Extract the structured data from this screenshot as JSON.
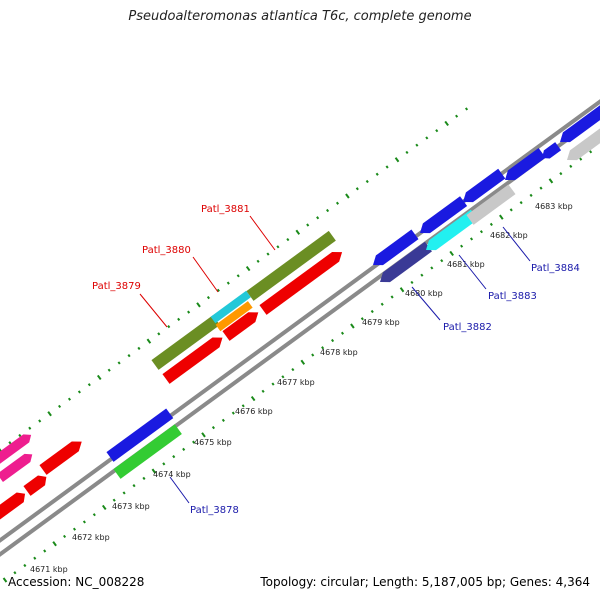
{
  "title": "Pseudoalteromonas atlantica T6c, complete genome",
  "footer": {
    "accession": "Accession: NC_008228",
    "summary": "Topology: circular; Length: 5,187,005 bp; Genes: 4,364"
  },
  "colors": {
    "backbone": "#808080",
    "ticks": "#1a8a1a",
    "highlight_label": "#dd0000",
    "normal_label": "#1a1aaa"
  },
  "ticks": [
    {
      "label": "4671 kbp"
    },
    {
      "label": "4672 kbp"
    },
    {
      "label": "4673 kbp"
    },
    {
      "label": "4674 kbp"
    },
    {
      "label": "4675 kbp"
    },
    {
      "label": "4676 kbp"
    },
    {
      "label": "4677 kbp"
    },
    {
      "label": "4678 kbp"
    },
    {
      "label": "4679 kbp"
    },
    {
      "label": "4680 kbp"
    },
    {
      "label": "4681 kbp"
    },
    {
      "label": "4682 kbp"
    },
    {
      "label": "4683 kbp"
    }
  ],
  "gene_labels": [
    {
      "text": "Patl_3878",
      "highlight": false
    },
    {
      "text": "Patl_3879",
      "highlight": true
    },
    {
      "text": "Patl_3880",
      "highlight": true
    },
    {
      "text": "Patl_3881",
      "highlight": true
    },
    {
      "text": "Patl_3882",
      "highlight": false
    },
    {
      "text": "Patl_3883",
      "highlight": false
    },
    {
      "text": "Patl_3884",
      "highlight": false
    }
  ]
}
